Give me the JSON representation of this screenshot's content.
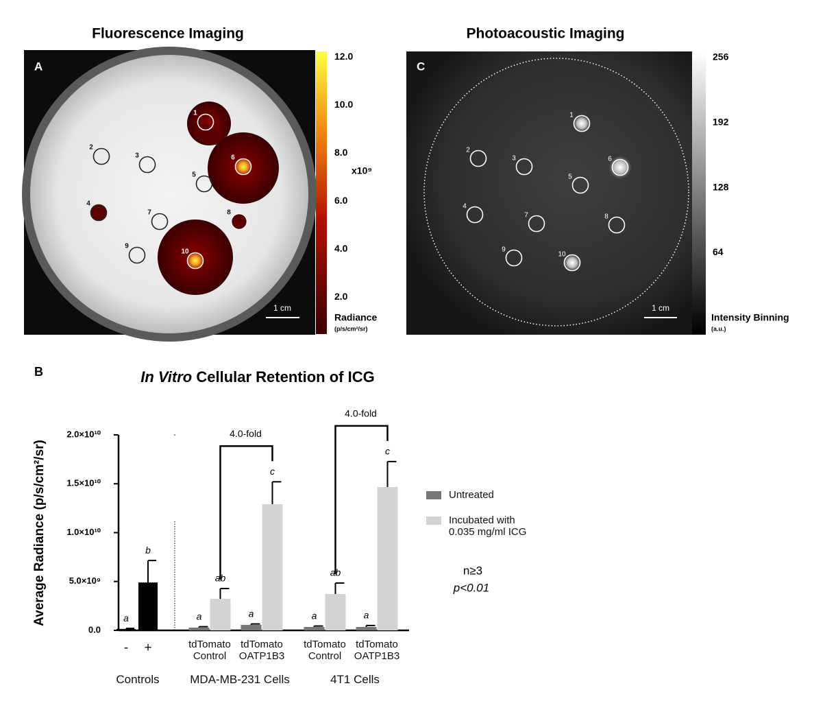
{
  "panels": {
    "fluorescence": {
      "title": "Fluorescence Imaging",
      "label": "A",
      "colorbar": {
        "clim": [
          0.46,
          12.23
        ],
        "ticks": [
          {
            "value": 12,
            "label": "12.0"
          },
          {
            "value": 10,
            "label": "10.0"
          },
          {
            "value": 8,
            "label": "8.0"
          },
          {
            "value": 6,
            "label": "6.0"
          },
          {
            "value": 4,
            "label": "4.0"
          },
          {
            "value": 2,
            "label": "2.0"
          }
        ],
        "multiplier": "x10⁹",
        "title": "Radiance",
        "unit": "(p/s/cm²/sr)"
      },
      "rois": [
        "1",
        "2",
        "3",
        "4",
        "5",
        "6",
        "7",
        "8",
        "9",
        "10"
      ],
      "scale_bar": "1 cm"
    },
    "photoacoustic": {
      "title": "Photoacoustic Imaging",
      "label": "C",
      "colorbar": {
        "clim": [
          -16,
          262
        ],
        "ticks": [
          256,
          192,
          128,
          64
        ],
        "title": "Intensity Binning",
        "unit": "(a.u.)"
      },
      "rois": [
        "1",
        "2",
        "3",
        "4",
        "5",
        "6",
        "7",
        "8",
        "9",
        "10"
      ],
      "scale_bar": "1 cm"
    }
  },
  "chart_data": {
    "type": "bar",
    "label": "B",
    "title": {
      "italic": "In Vitro",
      "text": "Cellular Retention of ICG"
    },
    "ylabel": "Average Radiance (p/s/cm²/sr)",
    "ylim": [
      0,
      20000000000
    ],
    "yticks": [
      {
        "value": 0,
        "label": "0.0"
      },
      {
        "value": 5000000000,
        "label": "5.0×10⁹"
      },
      {
        "value": 10000000000,
        "label": "1.0×10¹⁰"
      },
      {
        "value": 15000000000,
        "label": "1.5×10¹⁰"
      },
      {
        "value": 20000000000,
        "label": "2.0×10¹⁰"
      }
    ],
    "categories": [
      "-",
      "+",
      "tdTomato Control",
      "tdTomato OATP1B3",
      "tdTomato Control",
      "tdTomato OATP1B3"
    ],
    "groups": [
      "Controls",
      "MDA-MB-231 Cells",
      "4T1 Cells"
    ],
    "series": [
      {
        "color": "#000000",
        "values": [
          150000000,
          4900000000,
          null,
          null,
          null,
          null
        ],
        "errors": [
          50000000,
          2250000000,
          null,
          null,
          null,
          null
        ],
        "letters": [
          "a",
          "b",
          null,
          null,
          null,
          null
        ]
      },
      {
        "name": "Untreated",
        "color": "#777777",
        "values": [
          null,
          null,
          280000000,
          560000000,
          350000000,
          350000000
        ],
        "errors": [
          null,
          null,
          100000000,
          100000000,
          100000000,
          150000000
        ],
        "letters": [
          null,
          null,
          "a",
          "a",
          "a",
          "a"
        ]
      },
      {
        "name": "Incubated with 0.035 mg/ml ICG",
        "color": "#d3d3d3",
        "values": [
          null,
          null,
          3230000000,
          12900000000,
          3720000000,
          14670000000
        ],
        "errors": [
          null,
          null,
          1050000000,
          2300000000,
          1120000000,
          2600000000
        ],
        "letters": [
          null,
          null,
          "ab",
          "c",
          "ab",
          "c"
        ]
      }
    ],
    "comparisons": [
      "4.0-fold",
      "4.0-fold"
    ],
    "notes": [
      "n≥3",
      "p<0.01"
    ]
  }
}
